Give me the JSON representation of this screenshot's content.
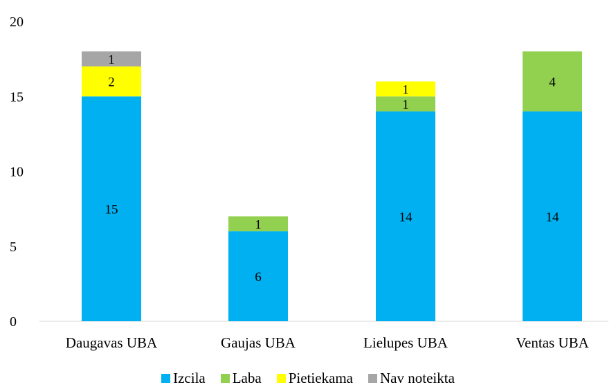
{
  "chart_data": {
    "type": "bar",
    "stacked": true,
    "categories": [
      "Daugavas UBA",
      "Gaujas UBA",
      "Lielupes UBA",
      "Ventas UBA"
    ],
    "series": [
      {
        "name": "Izcila",
        "color": "#00B0F0",
        "values": [
          15,
          6,
          14,
          14
        ]
      },
      {
        "name": "Laba",
        "color": "#92D050",
        "values": [
          0,
          1,
          1,
          4
        ]
      },
      {
        "name": "Pietiekama",
        "color": "#FFFF00",
        "values": [
          2,
          0,
          1,
          0
        ]
      },
      {
        "name": "Nav noteikta",
        "color": "#A6A6A6",
        "values": [
          1,
          0,
          0,
          0
        ]
      }
    ],
    "ylim": [
      0,
      20
    ],
    "yticks": [
      0,
      5,
      10,
      15,
      20
    ],
    "grid": false,
    "legend_position": "bottom",
    "title": "",
    "xlabel": "",
    "ylabel": ""
  }
}
